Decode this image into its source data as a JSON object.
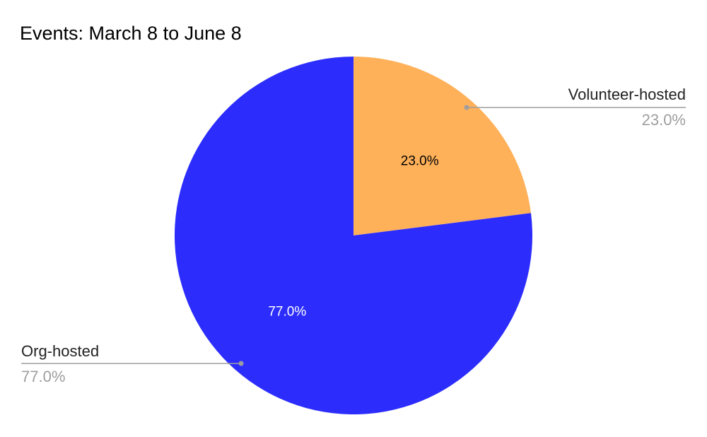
{
  "chart_data": {
    "type": "pie",
    "title": "Events: March 8 to June 8",
    "slices": [
      {
        "name": "Volunteer-hosted",
        "value": 23.0,
        "label": "23.0%",
        "color": "#ffb15a",
        "label_color": "#000000",
        "leader_color": "#9e9e9e"
      },
      {
        "name": "Org-hosted",
        "value": 77.0,
        "label": "77.0%",
        "color": "#2c2dfc",
        "label_color": "#ffffff",
        "leader_color": "#9e9e9e"
      }
    ],
    "start_angle": "12 o'clock",
    "direction": "clockwise",
    "legend": "callouts beside slices"
  }
}
